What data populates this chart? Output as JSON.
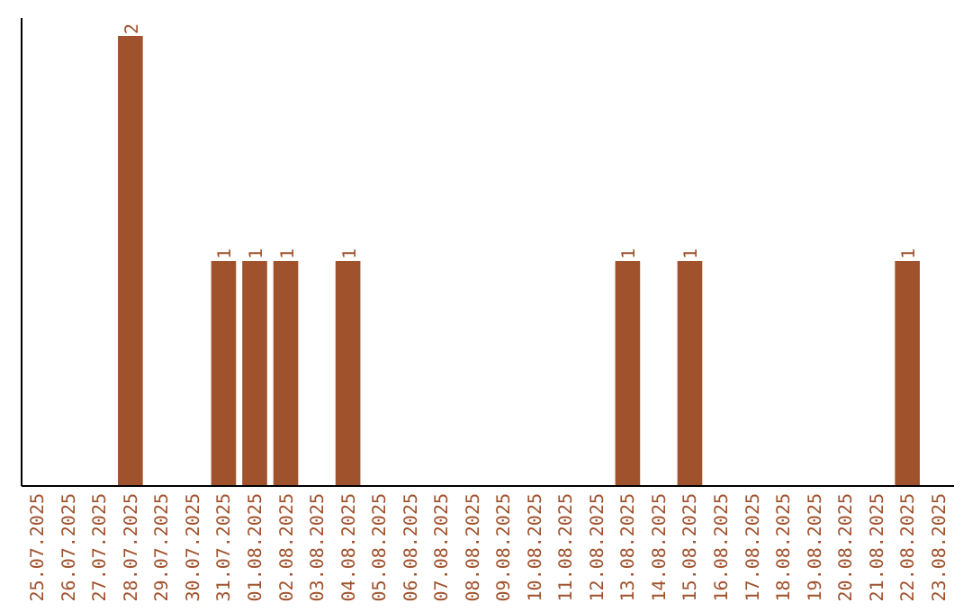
{
  "chart_data": {
    "type": "bar",
    "categories": [
      "25.07.2025",
      "26.07.2025",
      "27.07.2025",
      "28.07.2025",
      "29.07.2025",
      "30.07.2025",
      "31.07.2025",
      "01.08.2025",
      "02.08.2025",
      "03.08.2025",
      "04.08.2025",
      "05.08.2025",
      "06.08.2025",
      "07.08.2025",
      "08.08.2025",
      "09.08.2025",
      "10.08.2025",
      "11.08.2025",
      "12.08.2025",
      "13.08.2025",
      "14.08.2025",
      "15.08.2025",
      "16.08.2025",
      "17.08.2025",
      "18.08.2025",
      "19.08.2025",
      "20.08.2025",
      "21.08.2025",
      "22.08.2025",
      "23.08.2025"
    ],
    "values": [
      0,
      0,
      0,
      2,
      0,
      0,
      1,
      1,
      1,
      0,
      1,
      0,
      0,
      0,
      0,
      0,
      0,
      0,
      0,
      1,
      0,
      1,
      0,
      0,
      0,
      0,
      0,
      0,
      1,
      0
    ],
    "value_labels": [
      null,
      null,
      null,
      "2",
      null,
      null,
      "1",
      "1",
      "1",
      null,
      "1",
      null,
      null,
      null,
      null,
      null,
      null,
      null,
      null,
      "1",
      null,
      "1",
      null,
      null,
      null,
      null,
      null,
      null,
      "1",
      null
    ],
    "color": "#a0522d",
    "grid": false,
    "tick_labels": "x"
  }
}
